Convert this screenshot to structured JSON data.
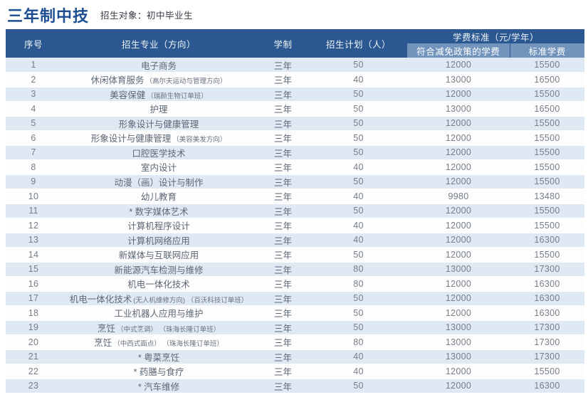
{
  "page": {
    "title": "三年制中技",
    "subtitle": "招生对象：初中毕业生"
  },
  "colors": {
    "header_bg": "#2b5890",
    "subheader_bg": "#7294bc",
    "stripe_bg": "#dfe9f3",
    "row_bg": "#fdfdfe",
    "title_color": "#1d4e91",
    "header_text": "#f0f5fa",
    "cell_text": "#5d6874",
    "num_text": "#767e88"
  },
  "table": {
    "headers": {
      "col_no": "序号",
      "col_major": "招生专业（方向）",
      "col_duration": "学制",
      "col_plan": "招生计划（人）",
      "col_fee_group": "学费标准（元/学年）",
      "col_fee_reduced": "符合减免政策的学费",
      "col_fee_standard": "标准学费"
    },
    "rows": [
      {
        "no": "1",
        "major": "电子商务",
        "note": "",
        "duration": "三年",
        "plan": "50",
        "reduced": "12000",
        "standard": "15500"
      },
      {
        "no": "2",
        "major": "休闲体育服务",
        "note": "（高尔夫运动与管理方向）",
        "duration": "三年",
        "plan": "40",
        "reduced": "13000",
        "standard": "16500"
      },
      {
        "no": "3",
        "major": "美容保健",
        "note": "（瑞颜生物订单班）",
        "duration": "三年",
        "plan": "50",
        "reduced": "12000",
        "standard": "15500"
      },
      {
        "no": "4",
        "major": "护理",
        "note": "",
        "duration": "三年",
        "plan": "50",
        "reduced": "13000",
        "standard": "16500"
      },
      {
        "no": "5",
        "major": "形象设计与健康管理",
        "note": "",
        "duration": "三年",
        "plan": "50",
        "reduced": "12000",
        "standard": "15500"
      },
      {
        "no": "6",
        "major": "形象设计与健康管理",
        "note": "（美容美发方向）",
        "duration": "三年",
        "plan": "50",
        "reduced": "12000",
        "standard": "15500"
      },
      {
        "no": "7",
        "major": "口腔医学技术",
        "note": "",
        "duration": "三年",
        "plan": "50",
        "reduced": "12000",
        "standard": "15500"
      },
      {
        "no": "8",
        "major": "室内设计",
        "note": "",
        "duration": "三年",
        "plan": "40",
        "reduced": "12000",
        "standard": "15500"
      },
      {
        "no": "9",
        "major": "动漫（画）设计与制作",
        "note": "",
        "duration": "三年",
        "plan": "50",
        "reduced": "12000",
        "standard": "15500"
      },
      {
        "no": "10",
        "major": "幼儿教育",
        "note": "",
        "duration": "三年",
        "plan": "40",
        "reduced": "9980",
        "standard": "13480"
      },
      {
        "no": "11",
        "major": "* 数字媒体艺术",
        "note": "",
        "duration": "三年",
        "plan": "50",
        "reduced": "12000",
        "standard": "15500"
      },
      {
        "no": "12",
        "major": "计算机程序设计",
        "note": "",
        "duration": "三年",
        "plan": "40",
        "reduced": "12000",
        "standard": "15500"
      },
      {
        "no": "13",
        "major": "计算机网络应用",
        "note": "",
        "duration": "三年",
        "plan": "40",
        "reduced": "12000",
        "standard": "16300"
      },
      {
        "no": "14",
        "major": "新媒体与互联网应用",
        "note": "",
        "duration": "三年",
        "plan": "50",
        "reduced": "12000",
        "standard": "15500"
      },
      {
        "no": "15",
        "major": "新能源汽车检测与维修",
        "note": "",
        "duration": "三年",
        "plan": "80",
        "reduced": "13000",
        "standard": "17300"
      },
      {
        "no": "16",
        "major": "机电一体化技术",
        "note": "",
        "duration": "三年",
        "plan": "80",
        "reduced": "12000",
        "standard": "16300"
      },
      {
        "no": "17",
        "major": "机电一体化技术",
        "note": "(无人机维修方向) （百沃科技订单班）",
        "duration": "三年",
        "plan": "50",
        "reduced": "12000",
        "standard": "16300"
      },
      {
        "no": "18",
        "major": "工业机器人应用与维护",
        "note": "",
        "duration": "三年",
        "plan": "50",
        "reduced": "12000",
        "standard": "16300"
      },
      {
        "no": "19",
        "major": "烹饪",
        "note": "（中式烹调） （珠海长隆订单班）",
        "duration": "三年",
        "plan": "50",
        "reduced": "13000",
        "standard": "17300"
      },
      {
        "no": "20",
        "major": "烹饪",
        "note": "（中西式面点） （珠海长隆订单班）",
        "duration": "三年",
        "plan": "80",
        "reduced": "13000",
        "standard": "17300"
      },
      {
        "no": "21",
        "major": "* 粤菜烹饪",
        "note": "",
        "duration": "三年",
        "plan": "40",
        "reduced": "13000",
        "standard": "17300"
      },
      {
        "no": "22",
        "major": "* 药膳与食疗",
        "note": "",
        "duration": "三年",
        "plan": "40",
        "reduced": "12000",
        "standard": "15500"
      },
      {
        "no": "23",
        "major": "* 汽车维修",
        "note": "",
        "duration": "三年",
        "plan": "50",
        "reduced": "12000",
        "standard": "16300"
      }
    ]
  }
}
